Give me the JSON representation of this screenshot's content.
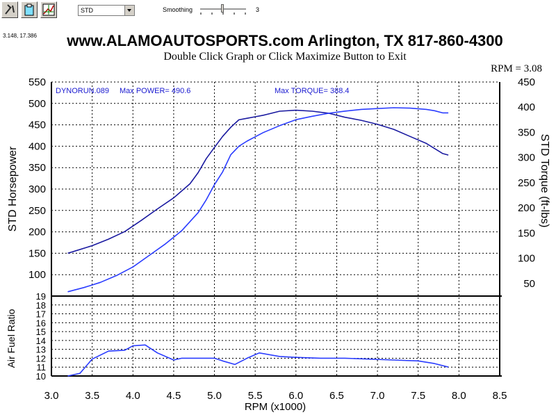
{
  "toolbar": {
    "buttons": [
      {
        "icon": "tools-icon"
      },
      {
        "icon": "clipboard-icon"
      },
      {
        "icon": "graph-icon"
      }
    ],
    "mode_select_value": "STD",
    "smoothing_label": "Smoothing",
    "smoothing_value": "3"
  },
  "coordinate_readout": "3.148, 17.386",
  "header": {
    "title": "www.ALAMOAUTOSPORTS.com Arlington, TX 817-860-4300",
    "subtitle": "Double Click Graph or Click Maximize Button to Exit",
    "rpm_readout": "RPM = 3.08"
  },
  "chart_data": [
    {
      "type": "line",
      "annotations": {
        "run": "DYNORUN.089",
        "max_power": "Max POWER= 490.6",
        "max_torque": "Max TORQUE= 388.4"
      },
      "ylabel": "STD Horsepower",
      "ylabel_right": "STD Torque (ft-lbs)",
      "ylim": [
        50,
        550
      ],
      "ylim_right": [
        25,
        450
      ],
      "yticks": [
        100,
        150,
        200,
        250,
        300,
        350,
        400,
        450,
        500,
        550
      ],
      "yticks_right": [
        50,
        100,
        150,
        200,
        250,
        300,
        350,
        400,
        450
      ],
      "grid": true,
      "series": [
        {
          "color": "#1a1aa0",
          "axis": "right",
          "x": [
            3.2,
            3.3,
            3.5,
            3.7,
            3.9,
            4.1,
            4.3,
            4.5,
            4.7,
            4.8,
            4.9,
            5.0,
            5.1,
            5.2,
            5.3,
            5.4,
            5.5,
            5.6,
            5.8,
            6.0,
            6.2,
            6.4,
            6.6,
            6.8,
            7.0,
            7.2,
            7.4,
            7.6,
            7.8,
            7.87
          ],
          "values": [
            110,
            115,
            125,
            138,
            153,
            175,
            198,
            220,
            248,
            270,
            298,
            320,
            342,
            360,
            375,
            378,
            381,
            384,
            392,
            394,
            392,
            388,
            380,
            374,
            366,
            356,
            342,
            328,
            308,
            305
          ]
        },
        {
          "color": "#2a3cff",
          "axis": "left",
          "x": [
            3.2,
            3.4,
            3.6,
            3.8,
            4.0,
            4.2,
            4.4,
            4.6,
            4.8,
            4.9,
            5.0,
            5.1,
            5.2,
            5.3,
            5.4,
            5.5,
            5.6,
            5.8,
            6.0,
            6.2,
            6.4,
            6.6,
            6.8,
            7.0,
            7.2,
            7.4,
            7.6,
            7.7,
            7.8,
            7.87
          ],
          "values": [
            60,
            70,
            82,
            98,
            118,
            145,
            172,
            203,
            245,
            275,
            310,
            340,
            380,
            400,
            412,
            422,
            432,
            448,
            462,
            470,
            477,
            482,
            486,
            488,
            490,
            489,
            486,
            483,
            478,
            478
          ]
        }
      ]
    },
    {
      "type": "line",
      "ylabel": "Air Fuel Ratio",
      "xlabel": "RPM (x1000)",
      "xlim": [
        3.0,
        8.5
      ],
      "xticks": [
        "3.0",
        "3.5",
        "4.0",
        "4.5",
        "5.0",
        "5.5",
        "6.0",
        "6.5",
        "7.0",
        "7.5",
        "8.0",
        "8.5"
      ],
      "ylim": [
        10,
        19
      ],
      "yticks": [
        10,
        11,
        12,
        13,
        14,
        15,
        16,
        17,
        18,
        19
      ],
      "grid": true,
      "series": [
        {
          "color": "#2a3cff",
          "x": [
            3.2,
            3.35,
            3.5,
            3.7,
            3.9,
            4.0,
            4.15,
            4.3,
            4.5,
            4.6,
            4.8,
            5.0,
            5.1,
            5.25,
            5.4,
            5.55,
            5.8,
            6.0,
            6.3,
            6.6,
            6.9,
            7.2,
            7.5,
            7.7,
            7.87
          ],
          "values": [
            10.0,
            10.3,
            11.9,
            12.8,
            12.9,
            13.4,
            13.5,
            12.6,
            11.8,
            12.0,
            12.0,
            12.0,
            11.7,
            11.3,
            12.0,
            12.6,
            12.2,
            12.1,
            12.0,
            12.0,
            11.9,
            11.8,
            11.7,
            11.4,
            11.0
          ]
        }
      ]
    }
  ]
}
